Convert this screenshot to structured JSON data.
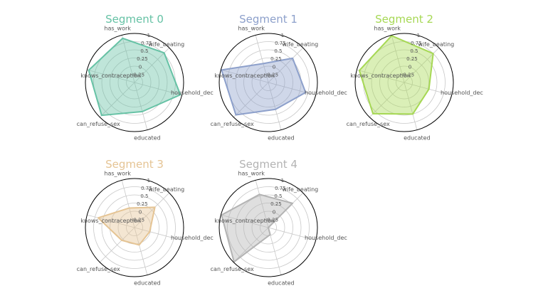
{
  "chart_data": [
    {
      "type": "radar",
      "title": "Segment 0",
      "color": "#66c2a5",
      "axes": [
        "household_dec",
        "wife_beating",
        "has_work",
        "knows_contraception",
        "can_refuse_sex",
        "educated"
      ],
      "rlim": [
        -0.5,
        1.0
      ],
      "rticks": [
        "-0.25",
        "0",
        "0.25",
        "0.5",
        "0.75",
        "1"
      ],
      "rtick_values": [
        -0.25,
        0,
        0.25,
        0.5,
        0.75,
        1.0
      ],
      "values": [
        0.95,
        0.78,
        0.9,
        0.95,
        0.92,
        0.42
      ]
    },
    {
      "type": "radar",
      "title": "Segment 1",
      "color": "#8da0cb",
      "axes": [
        "household_dec",
        "wife_beating",
        "has_work",
        "knows_contraception",
        "can_refuse_sex",
        "educated"
      ],
      "rlim": [
        -0.5,
        1.0
      ],
      "rticks": [
        "-0.25",
        "0",
        "0.25",
        "0.5",
        "0.75",
        "1"
      ],
      "rtick_values": [
        -0.25,
        0,
        0.25,
        0.5,
        0.75,
        1.0
      ],
      "values": [
        0.68,
        0.55,
        0.1,
        0.98,
        0.9,
        0.35
      ]
    },
    {
      "type": "radar",
      "title": "Segment 2",
      "color": "#a6d854",
      "axes": [
        "household_dec",
        "wife_beating",
        "has_work",
        "knows_contraception",
        "can_refuse_sex",
        "educated"
      ],
      "rlim": [
        -0.5,
        1.0
      ],
      "rticks": [
        "-0.25",
        "0",
        "0.25",
        "0.5",
        "0.75",
        "1"
      ],
      "rtick_values": [
        -0.25,
        0,
        0.25,
        0.5,
        0.75,
        1.0
      ],
      "values": [
        0.28,
        0.75,
        0.98,
        0.92,
        0.85,
        0.5
      ]
    },
    {
      "type": "radar",
      "title": "Segment 3",
      "color": "#e5c494",
      "axes": [
        "household_dec",
        "wife_beating",
        "has_work",
        "knows_contraception",
        "can_refuse_sex",
        "educated"
      ],
      "rlim": [
        -0.5,
        1.0
      ],
      "rticks": [
        "-0.25",
        "0",
        "0.25",
        "0.5",
        "0.75",
        "1"
      ],
      "rtick_values": [
        -0.25,
        0,
        0.25,
        0.5,
        0.75,
        1.0
      ],
      "values": [
        -0.02,
        0.38,
        0.12,
        0.65,
        0.05,
        0.05
      ]
    },
    {
      "type": "radar",
      "title": "Segment 4",
      "color": "#b3b3b3",
      "axes": [
        "household_dec",
        "wife_beating",
        "has_work",
        "knows_contraception",
        "can_refuse_sex",
        "educated"
      ],
      "rlim": [
        -0.5,
        1.0
      ],
      "rticks": [
        "-0.25",
        "0",
        "0.25",
        "0.5",
        "0.75",
        "1"
      ],
      "rtick_values": [
        -0.25,
        0,
        0.25,
        0.5,
        0.75,
        1.0
      ],
      "values": [
        -0.5,
        0.55,
        0.55,
        0.98,
        0.98,
        -0.28
      ]
    }
  ]
}
